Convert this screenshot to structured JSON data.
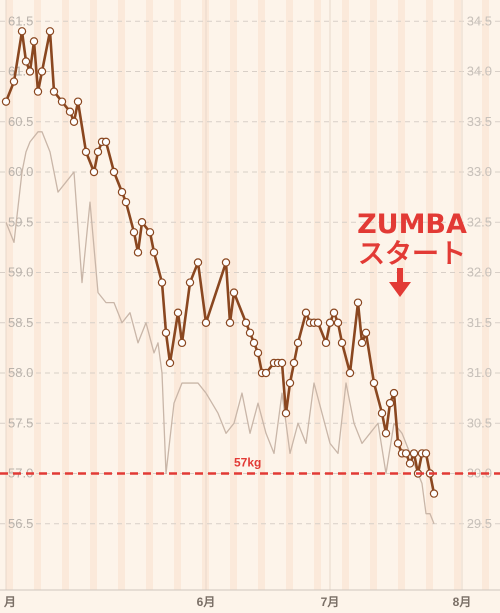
{
  "chart_data": {
    "type": "line",
    "x_axis": {
      "labels": [
        "月",
        "6月",
        "7月",
        "8月"
      ],
      "label_day": [
        1,
        51,
        82,
        115
      ]
    },
    "y_left": {
      "ticks": [
        56.5,
        57.0,
        57.5,
        58.0,
        58.5,
        59.0,
        59.5,
        60.0,
        60.5,
        61.0,
        61.5
      ],
      "range": [
        56.2,
        61.7
      ]
    },
    "y_right": {
      "ticks": [
        29.5,
        30.0,
        30.5,
        31.0,
        31.5,
        32.0,
        32.5,
        33.0,
        33.5,
        34.0,
        34.5
      ],
      "range": [
        29.2,
        34.7
      ]
    },
    "series": [
      {
        "axis": "left",
        "color": "#8a4720",
        "markers": true,
        "points": [
          [
            1,
            60.7
          ],
          [
            3,
            60.9
          ],
          [
            5,
            61.4
          ],
          [
            6,
            61.1
          ],
          [
            7,
            61.0
          ],
          [
            8,
            61.3
          ],
          [
            9,
            60.8
          ],
          [
            10,
            61.0
          ],
          [
            12,
            61.4
          ],
          [
            13,
            60.8
          ],
          [
            15,
            60.7
          ],
          [
            17,
            60.6
          ],
          [
            18,
            60.5
          ],
          [
            19,
            60.7
          ],
          [
            21,
            60.2
          ],
          [
            23,
            60.0
          ],
          [
            24,
            60.2
          ],
          [
            25,
            60.3
          ],
          [
            26,
            60.3
          ],
          [
            28,
            60.0
          ],
          [
            30,
            59.8
          ],
          [
            31,
            59.7
          ],
          [
            33,
            59.4
          ],
          [
            34,
            59.2
          ],
          [
            35,
            59.5
          ],
          [
            37,
            59.4
          ],
          [
            38,
            59.2
          ],
          [
            40,
            58.9
          ],
          [
            41,
            58.4
          ],
          [
            42,
            58.1
          ],
          [
            44,
            58.6
          ],
          [
            45,
            58.3
          ],
          [
            47,
            58.9
          ],
          [
            49,
            59.1
          ],
          [
            51,
            58.5
          ],
          [
            56,
            59.1
          ],
          [
            57,
            58.5
          ],
          [
            58,
            58.8
          ],
          [
            61,
            58.5
          ],
          [
            62,
            58.4
          ],
          [
            63,
            58.3
          ],
          [
            64,
            58.2
          ],
          [
            65,
            58.0
          ],
          [
            66,
            58.0
          ],
          [
            68,
            58.1
          ],
          [
            69,
            58.1
          ],
          [
            70,
            58.1
          ],
          [
            71,
            57.6
          ],
          [
            72,
            57.9
          ],
          [
            73,
            58.1
          ],
          [
            74,
            58.3
          ],
          [
            76,
            58.6
          ],
          [
            77,
            58.5
          ],
          [
            78,
            58.5
          ],
          [
            79,
            58.5
          ],
          [
            81,
            58.3
          ],
          [
            82,
            58.5
          ],
          [
            83,
            58.6
          ],
          [
            84,
            58.5
          ],
          [
            85,
            58.3
          ],
          [
            87,
            58.0
          ],
          [
            89,
            58.7
          ],
          [
            90,
            58.3
          ],
          [
            91,
            58.4
          ],
          [
            93,
            57.9
          ],
          [
            95,
            57.6
          ],
          [
            96,
            57.4
          ],
          [
            97,
            57.7
          ],
          [
            98,
            57.8
          ],
          [
            99,
            57.3
          ],
          [
            100,
            57.2
          ],
          [
            101,
            57.2
          ],
          [
            102,
            57.1
          ],
          [
            103,
            57.2
          ],
          [
            104,
            57.0
          ],
          [
            105,
            57.2
          ],
          [
            106,
            57.2
          ],
          [
            107,
            57.0
          ],
          [
            108,
            56.8
          ]
        ]
      },
      {
        "axis": "right",
        "color": "#c9b6a8",
        "markers": false,
        "points": [
          [
            1,
            32.5
          ],
          [
            3,
            32.3
          ],
          [
            5,
            33.0
          ],
          [
            6,
            33.2
          ],
          [
            7,
            33.3
          ],
          [
            9,
            33.4
          ],
          [
            10,
            33.4
          ],
          [
            12,
            33.2
          ],
          [
            14,
            32.8
          ],
          [
            16,
            32.9
          ],
          [
            18,
            33.0
          ],
          [
            20,
            31.9
          ],
          [
            22,
            32.7
          ],
          [
            24,
            31.8
          ],
          [
            26,
            31.7
          ],
          [
            28,
            31.7
          ],
          [
            30,
            31.5
          ],
          [
            32,
            31.6
          ],
          [
            34,
            31.3
          ],
          [
            36,
            31.5
          ],
          [
            38,
            31.2
          ],
          [
            39,
            31.3
          ],
          [
            40,
            31.0
          ],
          [
            41,
            30.0
          ],
          [
            43,
            30.7
          ],
          [
            45,
            30.9
          ],
          [
            47,
            30.9
          ],
          [
            49,
            30.9
          ],
          [
            51,
            30.8
          ],
          [
            54,
            30.6
          ],
          [
            56,
            30.4
          ],
          [
            58,
            30.5
          ],
          [
            60,
            30.8
          ],
          [
            62,
            30.4
          ],
          [
            64,
            30.7
          ],
          [
            66,
            30.4
          ],
          [
            68,
            30.2
          ],
          [
            70,
            30.8
          ],
          [
            72,
            30.2
          ],
          [
            74,
            30.5
          ],
          [
            76,
            30.3
          ],
          [
            78,
            30.9
          ],
          [
            80,
            30.6
          ],
          [
            82,
            30.3
          ],
          [
            84,
            30.2
          ],
          [
            86,
            30.9
          ],
          [
            88,
            30.5
          ],
          [
            90,
            30.3
          ],
          [
            92,
            30.4
          ],
          [
            94,
            30.5
          ],
          [
            96,
            30.0
          ],
          [
            98,
            30.5
          ],
          [
            100,
            30.4
          ],
          [
            102,
            30.2
          ],
          [
            104,
            30.0
          ],
          [
            105,
            29.9
          ],
          [
            106,
            29.6
          ],
          [
            107,
            29.6
          ],
          [
            108,
            29.5
          ]
        ]
      }
    ],
    "reference_line": {
      "value": 57.0,
      "label": "57kg",
      "color": "#e23a35"
    },
    "annotation": {
      "lines": [
        "ZUMBA",
        "スタート"
      ],
      "day": 90,
      "color": "#e23a35"
    },
    "grid": true,
    "background": {
      "light": "#fdf4ea",
      "dark": "#fbe9da"
    }
  }
}
